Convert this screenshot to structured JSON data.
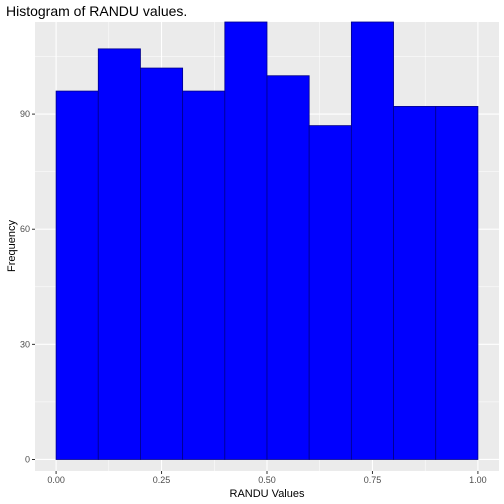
{
  "chart_data": {
    "type": "bar",
    "title": "Histogram of RANDU values.",
    "xlabel": "RANDU Values",
    "ylabel": "Frequency",
    "bin_edges": [
      0.0,
      0.1,
      0.2,
      0.3,
      0.4,
      0.5,
      0.6,
      0.7,
      0.8,
      0.9,
      1.0
    ],
    "values": [
      96,
      107,
      102,
      96,
      114,
      100,
      87,
      114,
      92,
      92
    ],
    "xlim": [
      -0.05,
      1.05
    ],
    "ylim": [
      -3,
      114
    ],
    "x_ticks": [
      0,
      0.25,
      0.5,
      0.75,
      1.0
    ],
    "x_tick_labels": [
      "0.00",
      "0.25",
      "0.50",
      "0.75",
      "1.00"
    ],
    "y_ticks": [
      0,
      30,
      60,
      90
    ],
    "y_tick_labels": [
      "0",
      "30",
      "60",
      "90"
    ],
    "bar_fill": "#0000ff",
    "bar_edge": "#00008b",
    "panel_background": "#ebebeb",
    "grid_color": "#ffffff",
    "grid": true
  }
}
